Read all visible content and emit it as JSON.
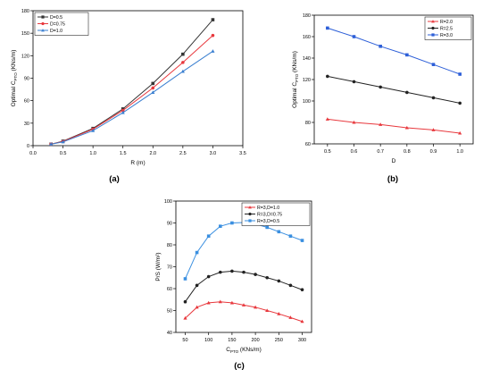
{
  "chart_data": [
    {
      "id": "a",
      "type": "line",
      "panel_label": "(a)",
      "xlabel": "R (m)",
      "ylabel_main": "Optimal C",
      "ylabel_sub": "PTO",
      "ylabel_unit": " (KNs/m)",
      "xlim": [
        0,
        3.5
      ],
      "ylim": [
        0,
        180
      ],
      "xticks": [
        0.0,
        0.5,
        1.0,
        1.5,
        2.0,
        2.5,
        3.0,
        3.5
      ],
      "xtick_labels": [
        "0.0",
        "0.5",
        "1.0",
        "1.5",
        "2.0",
        "2.5",
        "3.0",
        "3.5"
      ],
      "yticks": [
        0,
        30,
        60,
        90,
        120,
        150,
        180
      ],
      "ytick_labels": [
        "0",
        "30",
        "60",
        "90",
        "120",
        "150",
        "180"
      ],
      "legend_position": "top-left",
      "x": [
        0.3,
        0.5,
        1.0,
        1.5,
        2.0,
        2.5,
        3.0
      ],
      "series": [
        {
          "name": "D=0.5",
          "color": "#333333",
          "marker": "square",
          "values": [
            2,
            6,
            23,
            49,
            83,
            122,
            168
          ]
        },
        {
          "name": "D=0.75",
          "color": "#e8383d",
          "marker": "circle",
          "values": [
            2,
            5.5,
            22,
            47,
            77,
            111,
            147
          ]
        },
        {
          "name": "D=1.0",
          "color": "#3a7fd0",
          "marker": "triangle",
          "values": [
            2,
            5,
            20,
            44,
            71,
            99,
            126
          ]
        }
      ]
    },
    {
      "id": "b",
      "type": "line",
      "panel_label": "(b)",
      "xlabel": "D",
      "ylabel_main": "Optimal C",
      "ylabel_sub": "PTO",
      "ylabel_unit": " (KNs/m)",
      "xlim": [
        0.45,
        1.05
      ],
      "ylim": [
        60,
        180
      ],
      "xticks": [
        0.5,
        0.6,
        0.7,
        0.8,
        0.9,
        1.0
      ],
      "xtick_labels": [
        "0.5",
        "0.6",
        "0.7",
        "0.8",
        "0.9",
        "1.0"
      ],
      "yticks": [
        60,
        80,
        100,
        120,
        140,
        160,
        180
      ],
      "ytick_labels": [
        "60",
        "80",
        "100",
        "120",
        "140",
        "160",
        "180"
      ],
      "legend_position": "top-right",
      "x": [
        0.5,
        0.6,
        0.7,
        0.8,
        0.9,
        1.0
      ],
      "series": [
        {
          "name": "R=2.0",
          "color": "#e8383d",
          "marker": "triangle",
          "values": [
            83,
            80,
            78,
            75,
            73,
            70
          ]
        },
        {
          "name": "R=2.5",
          "color": "#222222",
          "marker": "circle",
          "values": [
            123,
            118,
            113,
            108,
            103,
            98
          ]
        },
        {
          "name": "R=3.0",
          "color": "#2d5fd8",
          "marker": "square",
          "values": [
            168,
            160,
            151,
            143,
            134,
            125
          ]
        }
      ]
    },
    {
      "id": "c",
      "type": "line",
      "panel_label": "(c)",
      "xlabel_main": "C",
      "xlabel_sub": "PTO",
      "xlabel_unit": " (KNs/m)",
      "ylabel": "P/S (W/m²)",
      "xlim": [
        30,
        320
      ],
      "ylim": [
        40,
        100
      ],
      "xticks": [
        50,
        100,
        150,
        200,
        250,
        300
      ],
      "xtick_labels": [
        "50",
        "100",
        "150",
        "200",
        "250",
        "300"
      ],
      "yticks": [
        40,
        50,
        60,
        70,
        80,
        90,
        100
      ],
      "ytick_labels": [
        "40",
        "50",
        "60",
        "70",
        "80",
        "90",
        "100"
      ],
      "legend_position": "top-right",
      "x": [
        50,
        75,
        100,
        125,
        150,
        175,
        200,
        225,
        250,
        275,
        300
      ],
      "series": [
        {
          "name": "R=3,D=1.0",
          "color": "#e8383d",
          "marker": "triangle",
          "values": [
            46.5,
            51.5,
            53.5,
            54,
            53.5,
            52.5,
            51.5,
            50,
            48.5,
            46.8,
            45
          ]
        },
        {
          "name": "R=3,D=0.75",
          "color": "#222222",
          "marker": "circle",
          "values": [
            54,
            61.5,
            65.5,
            67.5,
            68,
            67.5,
            66.5,
            65,
            63.5,
            61.5,
            59.5
          ]
        },
        {
          "name": "R=3,D=0.5",
          "color": "#3a8fe0",
          "marker": "square",
          "values": [
            64.5,
            76.5,
            84,
            88.5,
            90,
            90.2,
            89.5,
            88,
            86,
            84,
            82
          ]
        }
      ]
    }
  ]
}
